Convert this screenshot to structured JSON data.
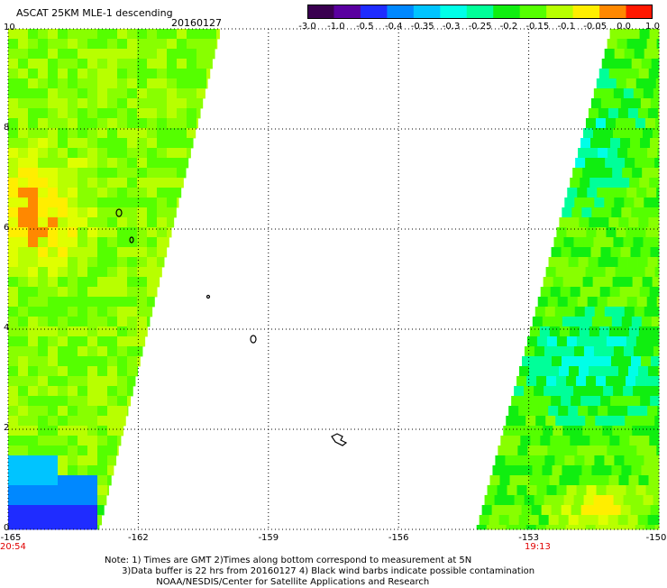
{
  "header": {
    "title": "ASCAT 25KM MLE-1 descending",
    "date": "20160127"
  },
  "colorbar": {
    "ticks": [
      "-3.0",
      "-1.0",
      "-0.5",
      "-0.4",
      "-0.35",
      "-0.3",
      "-0.25",
      "-0.2",
      "-0.15",
      "-0.1",
      "-0.05",
      "0.0",
      "1.0"
    ],
    "colors": [
      "#3a0050",
      "#5a00a0",
      "#1f2cff",
      "#0088ff",
      "#00c4ff",
      "#00ffe8",
      "#00ff99",
      "#10ee10",
      "#55ff00",
      "#b8ff00",
      "#ffee00",
      "#ff8800",
      "#ff1800"
    ]
  },
  "axes": {
    "y_ticks": [
      "0",
      "2",
      "4",
      "6",
      "8",
      "10"
    ],
    "x_ticks": [
      "-165",
      "-162",
      "-159",
      "-156",
      "-153",
      "-150"
    ]
  },
  "times": {
    "left": "20:54",
    "right": "19:13"
  },
  "notes": [
    "Note: 1) Times are GMT 2)Times along bottom correspond to measurement at 5N",
    "      3)Data buffer is 22 hrs from 20160127 4) Black wind barbs indicate possible contamination",
    "                  NOAA/NESDIS/Center for Satellite Applications and Research"
  ],
  "map": {
    "lon_range": [
      -165,
      -150
    ],
    "lat_range": [
      0,
      10
    ],
    "swaths": [
      {
        "name": "west swath",
        "edge_lon_south": -162.9,
        "edge_lon_north": -160.1,
        "side": "west"
      },
      {
        "name": "east swath",
        "edge_lon_south": -154.2,
        "edge_lon_north": -151.1,
        "side": "east"
      }
    ]
  }
}
